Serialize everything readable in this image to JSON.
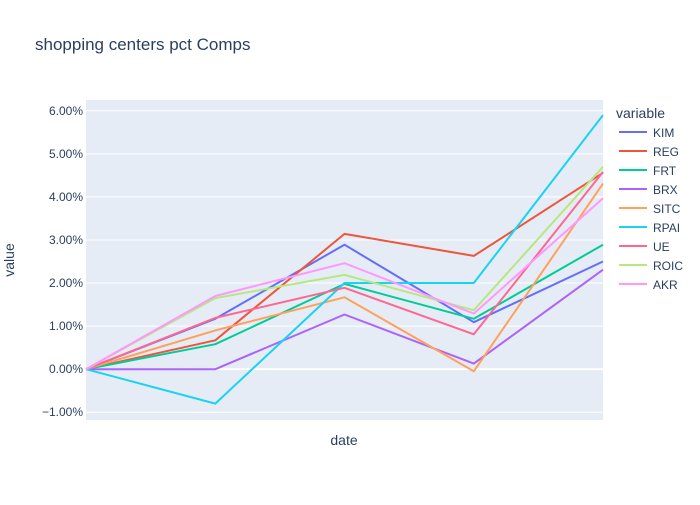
{
  "chart_data": {
    "type": "line",
    "title": "shopping centers pct Comps",
    "xlabel": "date",
    "ylabel": "value",
    "legend_title": "variable",
    "legend_position": "right",
    "grid": true,
    "x_tick_labels_shown": false,
    "x": [
      1,
      2,
      3,
      4,
      5
    ],
    "ylim": [
      -0.0118,
      0.0625
    ],
    "yticks": [
      -0.01,
      0,
      0.01,
      0.02,
      0.03,
      0.04,
      0.05,
      0.06
    ],
    "ytick_labels": [
      "−1.00%",
      "0.00%",
      "1.00%",
      "2.00%",
      "3.00%",
      "4.00%",
      "5.00%",
      "6.00%"
    ],
    "series": [
      {
        "name": "KIM",
        "color": "#636efa",
        "values": [
          0,
          0.0117,
          0.0289,
          0.0109,
          0.025
        ]
      },
      {
        "name": "REG",
        "color": "#EF553B",
        "values": [
          0,
          0.0067,
          0.0314,
          0.0263,
          0.0456
        ]
      },
      {
        "name": "FRT",
        "color": "#00cc96",
        "values": [
          0,
          0.0058,
          0.0198,
          0.0117,
          0.0289
        ]
      },
      {
        "name": "BRX",
        "color": "#ab63fa",
        "values": [
          0,
          0.0,
          0.0127,
          0.0013,
          0.0231
        ]
      },
      {
        "name": "SITC",
        "color": "#FFA15A",
        "values": [
          0,
          0.009,
          0.0167,
          -0.0005,
          0.0431
        ]
      },
      {
        "name": "RPAI",
        "color": "#19d3f3",
        "values": [
          0,
          -0.008,
          0.02,
          0.02,
          0.059
        ]
      },
      {
        "name": "UE",
        "color": "#FF6692",
        "values": [
          0,
          0.0119,
          0.0189,
          0.0081,
          0.0458
        ]
      },
      {
        "name": "ROIC",
        "color": "#B6E880",
        "values": [
          0,
          0.0165,
          0.0219,
          0.0137,
          0.047
        ]
      },
      {
        "name": "AKR",
        "color": "#FF97FF",
        "values": [
          0,
          0.017,
          0.0246,
          0.0129,
          0.0397
        ]
      }
    ]
  },
  "colors": {
    "plot_bg": "#e5ecf6",
    "grid": "#ffffff",
    "text": "#2a3f5f"
  }
}
